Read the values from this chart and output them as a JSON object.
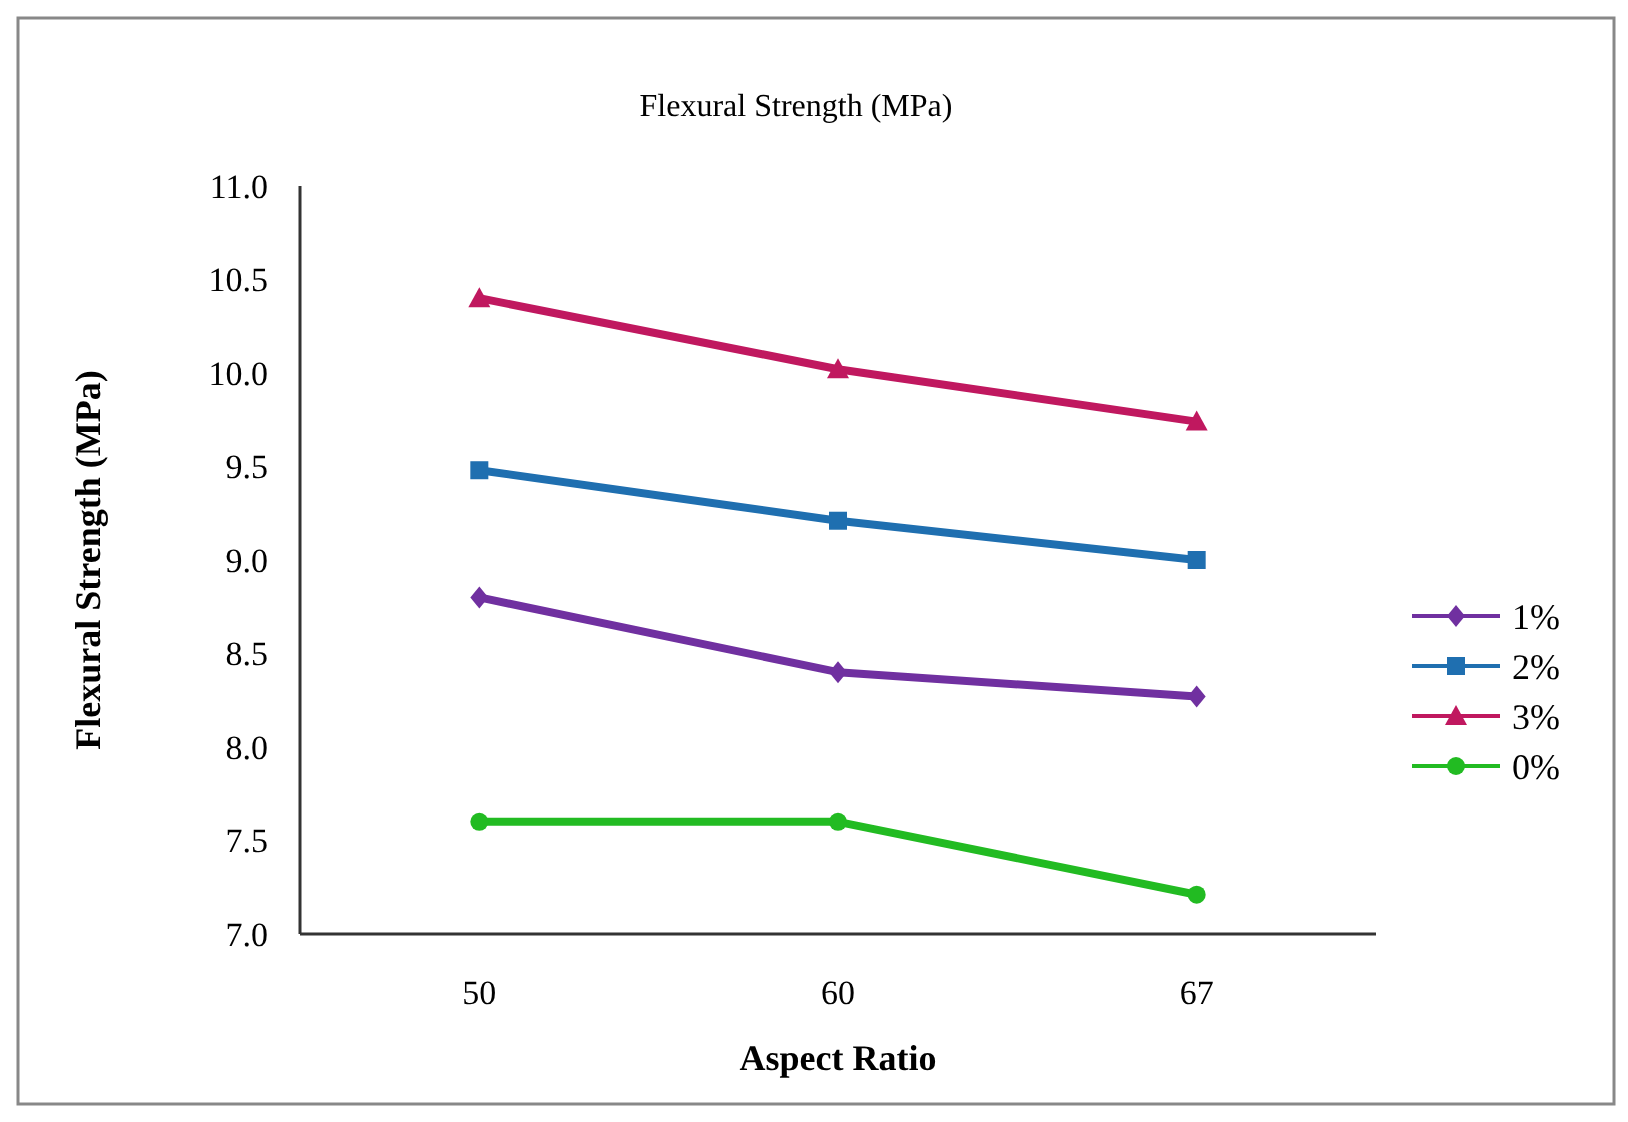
{
  "chart_data": {
    "type": "line",
    "title": "Flexural Strength (MPa)",
    "xlabel": "Aspect Ratio",
    "ylabel": "Flexural Strength (MPa)",
    "categories": [
      "50",
      "60",
      "67"
    ],
    "series": [
      {
        "name": "1%",
        "color": "#7030a0",
        "marker": "diamond",
        "values": [
          8.8,
          8.4,
          8.27
        ]
      },
      {
        "name": "2%",
        "color": "#1f6fb0",
        "marker": "square",
        "values": [
          9.48,
          9.21,
          9.0
        ]
      },
      {
        "name": "3%",
        "color": "#c0185f",
        "marker": "triangle",
        "values": [
          10.4,
          10.02,
          9.74
        ]
      },
      {
        "name": "0%",
        "color": "#22bb22",
        "marker": "circle",
        "values": [
          7.6,
          7.6,
          7.21
        ]
      }
    ],
    "ylim": [
      7.0,
      11.0
    ],
    "yticks": [
      {
        "value": 7,
        "label": "7.0"
      },
      {
        "value": 7.5,
        "label": "7.5"
      },
      {
        "value": 8,
        "label": "8.0"
      },
      {
        "value": 8.5,
        "label": "8.5"
      },
      {
        "value": 9,
        "label": "9.0"
      },
      {
        "value": 9.5,
        "label": "9.5"
      },
      {
        "value": 10,
        "label": "10.0"
      },
      {
        "value": 10.5,
        "label": "10.5"
      },
      {
        "value": 11,
        "label": "11.0"
      }
    ],
    "grid": false,
    "legend": "right",
    "line_style": "solid"
  }
}
